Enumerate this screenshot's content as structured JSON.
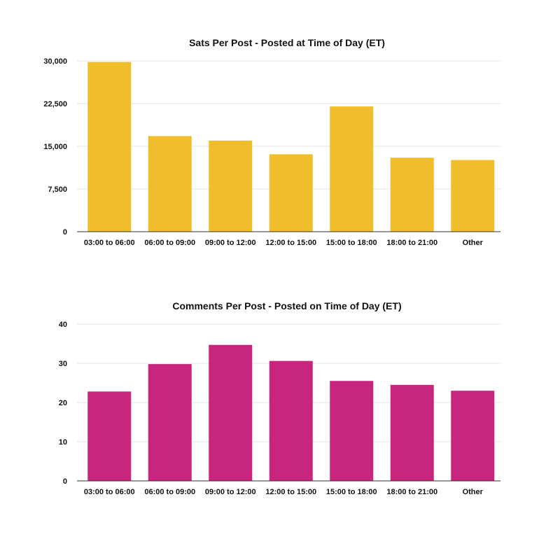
{
  "chart_data": [
    {
      "type": "bar",
      "title": "Sats Per Post - Posted at Time of Day (ET)",
      "xlabel": "",
      "ylabel": "",
      "categories": [
        "03:00 to 06:00",
        "06:00 to 09:00",
        "09:00 to 12:00",
        "12:00 to 15:00",
        "15:00 to 18:00",
        "18:00 to 21:00",
        "Other"
      ],
      "values": [
        29800,
        16800,
        16000,
        13600,
        22000,
        13000,
        12600
      ],
      "ylim": [
        0,
        30000
      ],
      "yticks": [
        0,
        7500,
        15000,
        22500,
        30000
      ],
      "ytick_labels": [
        "0",
        "7,500",
        "15,000",
        "22,500",
        "30,000"
      ],
      "grid": true,
      "color": "#F0BE2C"
    },
    {
      "type": "bar",
      "title": "Comments Per Post - Posted on Time of Day (ET)",
      "xlabel": "",
      "ylabel": "",
      "categories": [
        "03:00 to 06:00",
        "06:00 to 09:00",
        "09:00 to 12:00",
        "12:00 to 15:00",
        "15:00 to 18:00",
        "18:00 to 21:00",
        "Other"
      ],
      "values": [
        22.8,
        29.8,
        34.7,
        30.6,
        25.5,
        24.5,
        23.0
      ],
      "ylim": [
        0,
        40
      ],
      "yticks": [
        0,
        10,
        20,
        30,
        40
      ],
      "ytick_labels": [
        "0",
        "10",
        "20",
        "30",
        "40"
      ],
      "grid": true,
      "color": "#C8267E"
    }
  ]
}
